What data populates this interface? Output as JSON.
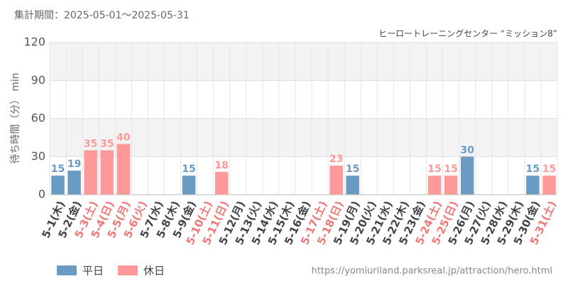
{
  "chart_data": {
    "type": "bar",
    "title": "集計期間：2025-05-01～2025-05-31",
    "subtitle": "ヒーロートレーニングセンター “ミッション8”",
    "y_label": "待ち時間（分） min",
    "source": "https://yomiuriland.parksreal.jp/attraction/hero.html",
    "categories": [
      "5-1(木)",
      "5-2(金)",
      "5-3(土)",
      "5-4(日)",
      "5-5(月)",
      "5-6(火)",
      "5-7(水)",
      "5-8(木)",
      "5-9(金)",
      "5-10(土)",
      "5-11(日)",
      "5-12(月)",
      "5-13(火)",
      "5-14(水)",
      "5-15(木)",
      "5-16(金)",
      "5-17(土)",
      "5-18(日)",
      "5-19(月)",
      "5-20(火)",
      "5-21(水)",
      "5-22(木)",
      "5-23(金)",
      "5-24(土)",
      "5-25(日)",
      "5-26(月)",
      "5-27(火)",
      "5-28(水)",
      "5-29(木)",
      "5-30(金)",
      "5-31(土)"
    ],
    "category_colors": [
      "#444",
      "#444",
      "#ee7777",
      "#ee7777",
      "#ee7777",
      "#ee7777",
      "#444",
      "#444",
      "#444",
      "#ee7777",
      "#ee7777",
      "#444",
      "#444",
      "#444",
      "#444",
      "#444",
      "#ee7777",
      "#ee7777",
      "#444",
      "#444",
      "#444",
      "#444",
      "#444",
      "#ee7777",
      "#ee7777",
      "#444",
      "#444",
      "#444",
      "#444",
      "#444",
      "#ee7777"
    ],
    "series": [
      {
        "name": "平日",
        "color": "#6a9bc3",
        "values": [
          15,
          19,
          null,
          null,
          null,
          null,
          null,
          null,
          15,
          null,
          null,
          null,
          null,
          null,
          null,
          null,
          null,
          null,
          15,
          null,
          null,
          null,
          null,
          null,
          null,
          30,
          null,
          null,
          null,
          15,
          null
        ]
      },
      {
        "name": "休日",
        "color": "#ff9999",
        "values": [
          null,
          null,
          35,
          35,
          40,
          null,
          null,
          null,
          null,
          null,
          18,
          null,
          null,
          null,
          null,
          null,
          null,
          23,
          null,
          null,
          null,
          null,
          null,
          15,
          15,
          null,
          null,
          null,
          null,
          null,
          15
        ]
      }
    ],
    "ylim": [
      0,
      120
    ],
    "yticks": [
      0,
      30,
      60,
      90,
      120
    ],
    "grid": true
  }
}
